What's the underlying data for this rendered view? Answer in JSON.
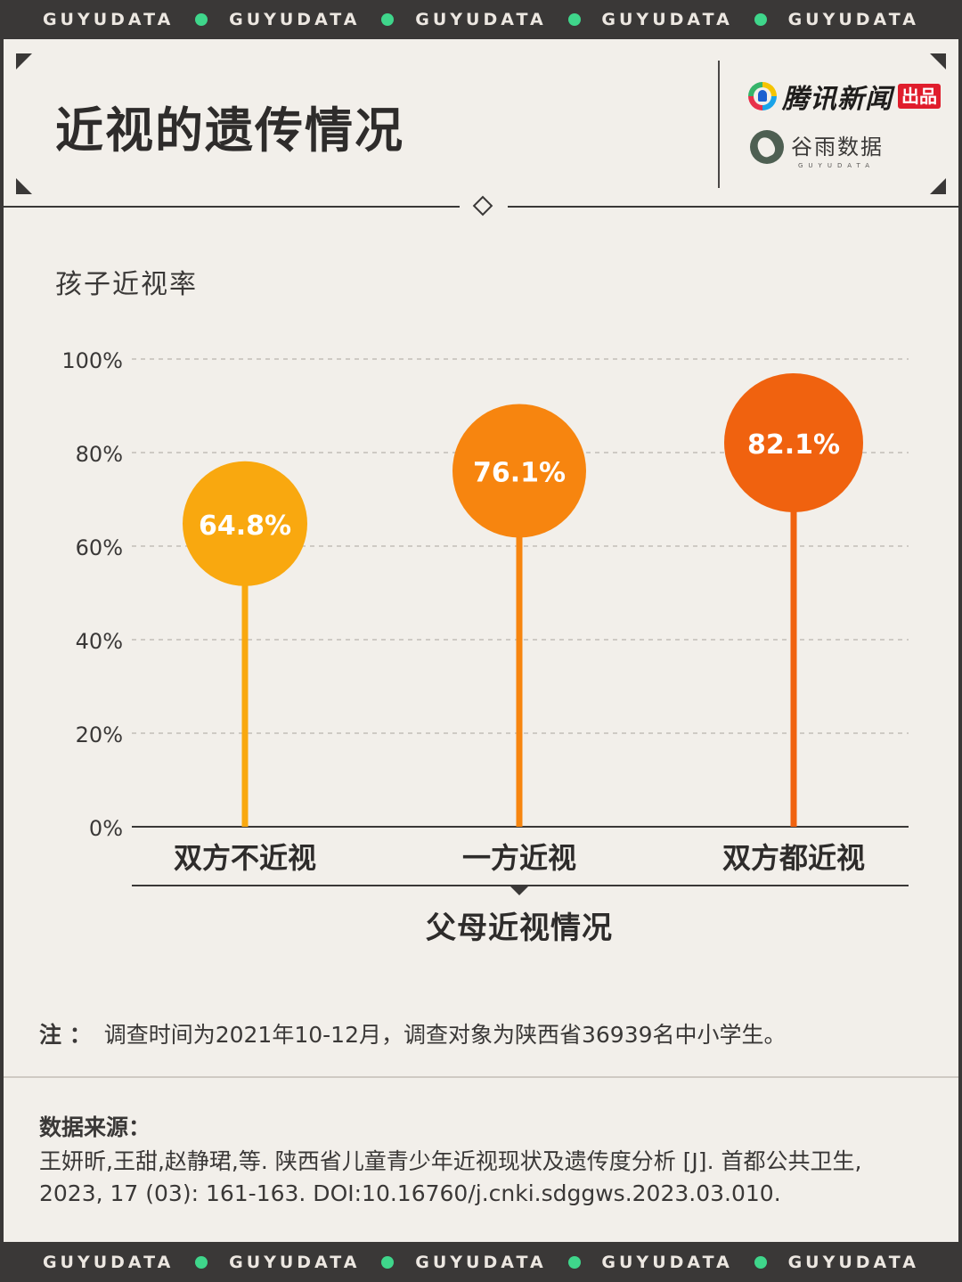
{
  "banner": {
    "word": "GUYUDATA",
    "repeat": 5,
    "dot_color": "#3fd68b"
  },
  "header": {
    "title": "近视的遗传情况",
    "brand_primary": "腾讯新闻",
    "brand_primary_tag": "出品",
    "brand_secondary": "谷雨数据",
    "brand_secondary_en": "GUYUDATA"
  },
  "chart_data": {
    "type": "lollipop",
    "ylabel": "孩子近视率",
    "xlabel": "父母近视情况",
    "categories": [
      "双方不近视",
      "一方近视",
      "双方都近视"
    ],
    "values": [
      64.8,
      76.1,
      82.1
    ],
    "value_labels": [
      "64.8%",
      "76.1%",
      "82.1%"
    ],
    "colors": [
      "#f9a80f",
      "#f7850f",
      "#f0620f"
    ],
    "yticks": [
      0,
      20,
      40,
      60,
      80,
      100
    ],
    "ytick_labels": [
      "0%",
      "20%",
      "40%",
      "60%",
      "80%",
      "100%"
    ],
    "ylim": [
      0,
      100
    ],
    "grid": true
  },
  "footer": {
    "note_label": "注 ：",
    "note_text": "调查时间为2021年10-12月，调查对象为陕西省36939名中小学生。",
    "source_label": "数据来源：",
    "source_text": "王妍昕,王甜,赵静珺,等. 陕西省儿童青少年近视现状及遗传度分析 [J]. 首都公共卫生, 2023, 17 (03): 161-163. DOI:10.16760/j.cnki.sdggws.2023.03.010."
  }
}
